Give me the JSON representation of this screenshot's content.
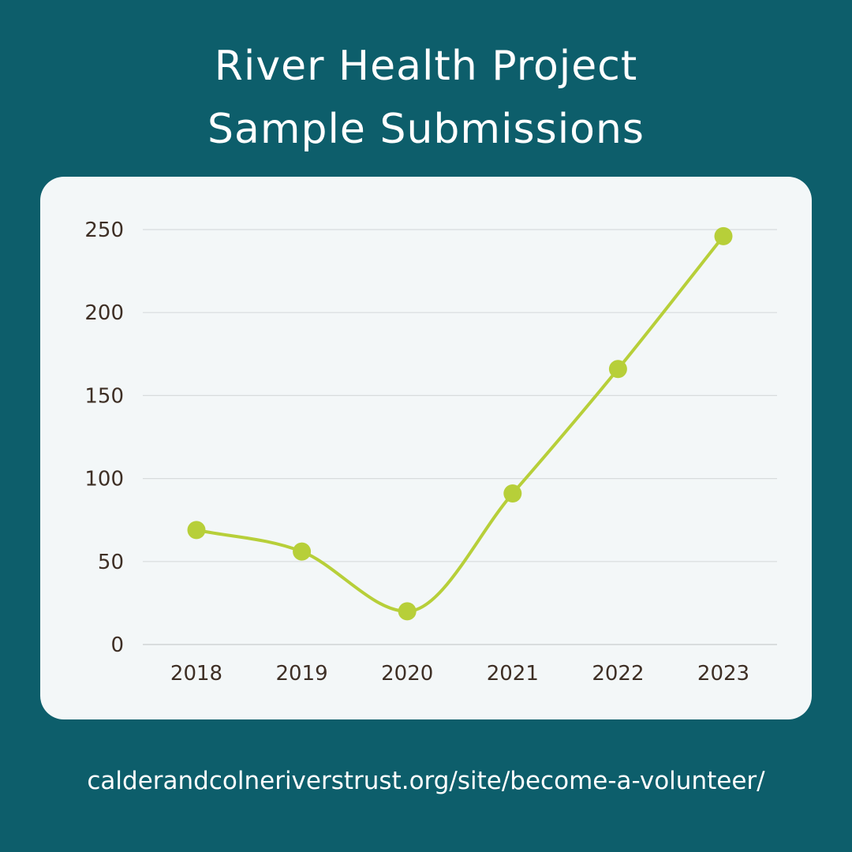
{
  "page": {
    "title_lines": [
      "River Health Project",
      "Sample Submissions"
    ],
    "url": "calderandcolneriverstrust.org/site/become-a-volunteer/",
    "colors": {
      "background": "#0d5e6b",
      "card": "#f3f7f8",
      "line": "#b7cf39",
      "grid": "#d8dcdd",
      "tick_text": "#3e2f25"
    }
  },
  "chart_data": {
    "type": "line",
    "title": "River Health Project Sample Submissions",
    "categories": [
      "2018",
      "2019",
      "2020",
      "2021",
      "2022",
      "2023"
    ],
    "values": [
      69,
      56,
      20,
      91,
      166,
      246
    ],
    "y_ticks": [
      0,
      50,
      100,
      150,
      200,
      250
    ],
    "ylim": [
      0,
      250
    ],
    "smooth": true,
    "grid": true,
    "legend": "none",
    "xlabel": "",
    "ylabel": ""
  }
}
